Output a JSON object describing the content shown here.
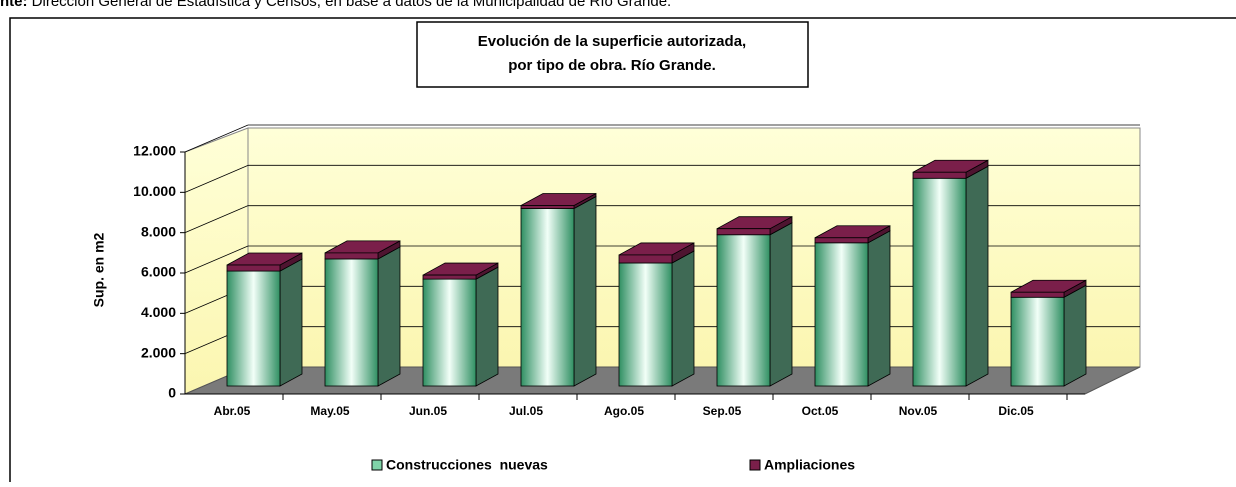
{
  "source": {
    "prefix": "nte:",
    "text": "Dirección General de Estadística y Censos, en base a datos de la Municipalidad de Río Grande."
  },
  "chart_data": {
    "type": "bar3d_stacked",
    "title": [
      "Evolución de la superficie autorizada,",
      "por tipo de obra. Río Grande."
    ],
    "y_label": "Sup. en m2",
    "categories": [
      "Abr.05",
      "May.05",
      "Jun.05",
      "Jul.05",
      "Ago.05",
      "Sep.05",
      "Oct.05",
      "Nov.05",
      "Dic.05"
    ],
    "series": [
      {
        "name": "Construcciones  nuevas",
        "color": "#2f8f62",
        "values": [
          5700,
          6300,
          5300,
          8800,
          6100,
          7500,
          7100,
          10300,
          4400
        ]
      },
      {
        "name": "Ampliaciones",
        "color": "#7a1f4a",
        "values": [
          300,
          300,
          200,
          150,
          400,
          300,
          250,
          300,
          250
        ]
      }
    ],
    "ylim": [
      0,
      12000
    ],
    "yticks": [
      0,
      {
        "value": 2000,
        "label": "2.000"
      },
      {
        "value": 4000,
        "label": "4.000"
      },
      {
        "value": 6000,
        "label": "6.000"
      },
      {
        "value": 8000,
        "label": "8.000"
      },
      {
        "value": 10000,
        "label": "10.000"
      },
      {
        "value": 12000,
        "label": "12.000"
      }
    ],
    "grid": true
  }
}
